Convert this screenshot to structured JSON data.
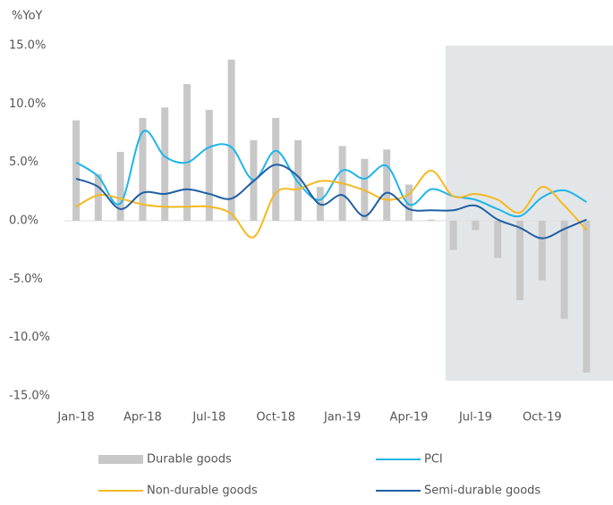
{
  "chart_data": {
    "type": "bar",
    "y_axis_label": "%YoY",
    "categories": [
      "Jan-18",
      null,
      null,
      "Apr-18",
      null,
      null,
      "Jul-18",
      null,
      null,
      "Oct-18",
      null,
      null,
      "Jan-19",
      null,
      null,
      "Apr-19",
      null,
      null,
      "Jul-19",
      null,
      null,
      "Oct-19",
      null,
      null
    ],
    "series": [
      {
        "name": "Durable goods",
        "type": "bar",
        "color": "#c8c8c8",
        "values": [
          8.6,
          4.0,
          5.9,
          8.8,
          9.7,
          11.7,
          9.5,
          13.8,
          6.9,
          8.8,
          6.9,
          2.9,
          6.4,
          5.3,
          6.1,
          3.1,
          0.1,
          -2.5,
          -0.8,
          -3.2,
          -6.8,
          -5.1,
          -8.4,
          -13.0
        ]
      },
      {
        "name": "PCI",
        "type": "line",
        "color": "#1fb5e8",
        "values": [
          5.0,
          3.8,
          1.5,
          7.6,
          5.5,
          5.0,
          6.3,
          6.3,
          3.5,
          6.0,
          3.3,
          1.8,
          4.3,
          3.6,
          4.7,
          1.4,
          2.7,
          2.1,
          1.8,
          1.0,
          0.4,
          2.0,
          2.6,
          1.6
        ]
      },
      {
        "name": "Non-durable goods",
        "type": "line",
        "color": "#f5b921",
        "values": [
          1.2,
          2.2,
          1.9,
          1.4,
          1.2,
          1.2,
          1.2,
          0.6,
          -1.4,
          2.4,
          2.7,
          3.4,
          3.2,
          2.6,
          1.8,
          2.3,
          4.3,
          2.1,
          2.3,
          1.8,
          0.7,
          2.9,
          1.3,
          -0.8
        ]
      },
      {
        "name": "Semi-durable goods",
        "type": "line",
        "color": "#1f5fa5",
        "values": [
          3.6,
          2.9,
          1.0,
          2.4,
          2.3,
          2.7,
          2.3,
          1.9,
          3.4,
          4.8,
          3.8,
          1.4,
          2.2,
          0.4,
          2.4,
          1.0,
          0.9,
          0.9,
          1.3,
          0.1,
          -0.6,
          -1.5,
          -0.7,
          0.1
        ]
      }
    ],
    "ylim": [
      -15,
      15
    ],
    "yticks": [
      {
        "value": -15,
        "label": "-15.0%"
      },
      {
        "value": -10,
        "label": "-10.0%"
      },
      {
        "value": -5,
        "label": "-5.0%"
      },
      {
        "value": 0,
        "label": "0.0%"
      },
      {
        "value": 5,
        "label": "5.0%"
      },
      {
        "value": 10,
        "label": "10.0%"
      },
      {
        "value": 15,
        "label": "15.0%"
      }
    ],
    "grid": false
  }
}
